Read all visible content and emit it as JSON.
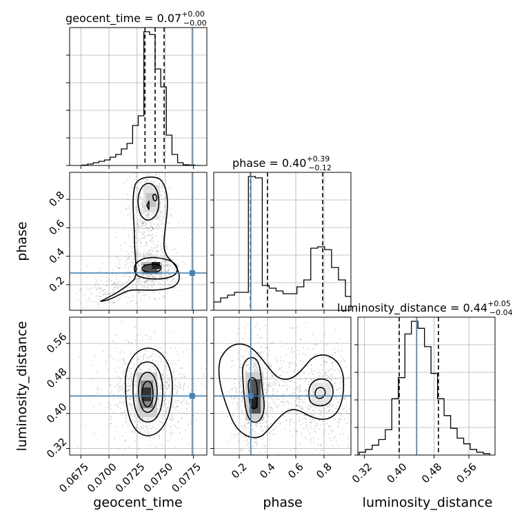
{
  "chart_data": {
    "type": "corner",
    "parameters": [
      "geocent_time",
      "phase",
      "luminosity_distance"
    ],
    "titles": [
      {
        "param": "geocent_time",
        "text": "geocent_time = 0.07",
        "sup": "+0.00",
        "sub": "−0.00"
      },
      {
        "param": "phase",
        "text": "phase = 0.40",
        "sup": "+0.39",
        "sub": "−0.12"
      },
      {
        "param": "luminosity_distance",
        "text": "luminosity_distance = 0.44",
        "sup": "+0.05",
        "sub": "−0.04"
      }
    ],
    "ranges": {
      "geocent_time": [
        0.0665,
        0.0787
      ],
      "phase": [
        0.02,
        0.99
      ],
      "luminosity_distance": [
        0.305,
        0.62
      ]
    },
    "ticks": {
      "geocent_time": [
        {
          "value": 0.0675,
          "label": "0.0675"
        },
        {
          "value": 0.07,
          "label": "0.0700"
        },
        {
          "value": 0.0725,
          "label": "0.0725"
        },
        {
          "value": 0.075,
          "label": "0.0750"
        },
        {
          "value": 0.0775,
          "label": "0.0775"
        }
      ],
      "phase": [
        {
          "value": 0.2,
          "label": "0.2"
        },
        {
          "value": 0.4,
          "label": "0.4"
        },
        {
          "value": 0.6,
          "label": "0.6"
        },
        {
          "value": 0.8,
          "label": "0.8"
        }
      ],
      "luminosity_distance": [
        {
          "value": 0.32,
          "label": "0.32"
        },
        {
          "value": 0.4,
          "label": "0.40"
        },
        {
          "value": 0.48,
          "label": "0.48"
        },
        {
          "value": 0.56,
          "label": "0.56"
        }
      ]
    },
    "injection": {
      "geocent_time": 0.0774,
      "phase": 0.282,
      "luminosity_distance": 0.44
    },
    "quantiles": {
      "geocent_time": [
        0.0732,
        0.0741,
        0.0749
      ],
      "phase": [
        0.28,
        0.4,
        0.79
      ],
      "luminosity_distance": [
        0.4,
        0.44,
        0.49
      ]
    },
    "histograms": {
      "geocent_time": {
        "edges": [
          0.0676,
          0.0681,
          0.0686,
          0.0691,
          0.0696,
          0.0701,
          0.0706,
          0.0711,
          0.0716,
          0.0721,
          0.0726,
          0.0731,
          0.0736,
          0.0741,
          0.0746,
          0.0751,
          0.0756,
          0.0761,
          0.0766,
          0.0771,
          0.0776,
          0.0781
        ],
        "counts": [
          0.003,
          0.01,
          0.02,
          0.03,
          0.04,
          0.06,
          0.08,
          0.12,
          0.16,
          0.29,
          0.36,
          0.97,
          0.95,
          0.7,
          0.57,
          0.22,
          0.08,
          0.02,
          0.005,
          0.003,
          0.0
        ]
      },
      "phase": {
        "edges": [
          0.02,
          0.069,
          0.118,
          0.167,
          0.216,
          0.265,
          0.314,
          0.363,
          0.412,
          0.461,
          0.51,
          0.559,
          0.608,
          0.657,
          0.706,
          0.755,
          0.804,
          0.853,
          0.902,
          0.951,
          0.99
        ],
        "counts": [
          0.06,
          0.09,
          0.11,
          0.13,
          0.13,
          0.97,
          0.96,
          0.18,
          0.16,
          0.14,
          0.12,
          0.12,
          0.17,
          0.22,
          0.45,
          0.46,
          0.44,
          0.31,
          0.22,
          0.1
        ]
      },
      "luminosity_distance": {
        "edges": [
          0.308,
          0.323,
          0.338,
          0.353,
          0.368,
          0.383,
          0.398,
          0.413,
          0.428,
          0.443,
          0.458,
          0.473,
          0.488,
          0.503,
          0.518,
          0.533,
          0.548,
          0.563,
          0.578,
          0.593,
          0.608
        ],
        "counts": [
          0.02,
          0.04,
          0.07,
          0.11,
          0.18,
          0.4,
          0.55,
          0.86,
          0.95,
          0.9,
          0.77,
          0.58,
          0.4,
          0.28,
          0.19,
          0.12,
          0.08,
          0.04,
          0.02,
          0.01
        ]
      }
    },
    "grid": true,
    "colors": {
      "line": "#000000",
      "truth": "#4682b4",
      "grid": "#b0b0b0",
      "scatter": "#555555"
    }
  }
}
